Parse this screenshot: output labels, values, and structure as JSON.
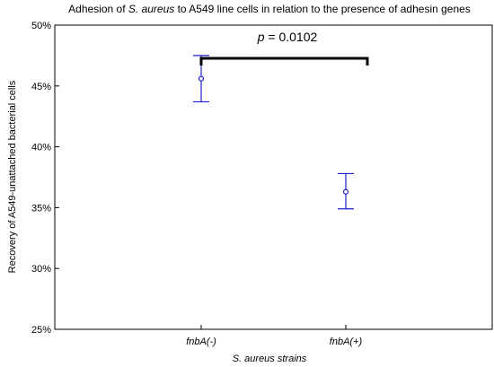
{
  "chart_data": {
    "type": "scatter",
    "title_parts": [
      "Adhesion of ",
      "S. aureus",
      " to A549 line cells in relation to the presence of adhesin genes"
    ],
    "ylabel": "Recovery of A549-unattached bacterial cells",
    "xlabel": "S. aureus strains",
    "ylim": [
      25,
      50
    ],
    "yticks": [
      "25%",
      "30%",
      "35%",
      "40%",
      "45%",
      "50%"
    ],
    "categories": [
      "fnbA(-)",
      "fnbA(+)"
    ],
    "points": [
      {
        "category": "fnbA(-)",
        "mean": 45.6,
        "lower": 43.7,
        "upper": 47.5
      },
      {
        "category": "fnbA(+)",
        "mean": 36.3,
        "lower": 34.9,
        "upper": 37.8
      }
    ],
    "annotation": {
      "p_label": "p",
      "p_value": " = 0.0102"
    },
    "colors": {
      "series": "#1f1fcc",
      "axis": "#000000",
      "bracket": "#000000"
    },
    "grid": false
  }
}
